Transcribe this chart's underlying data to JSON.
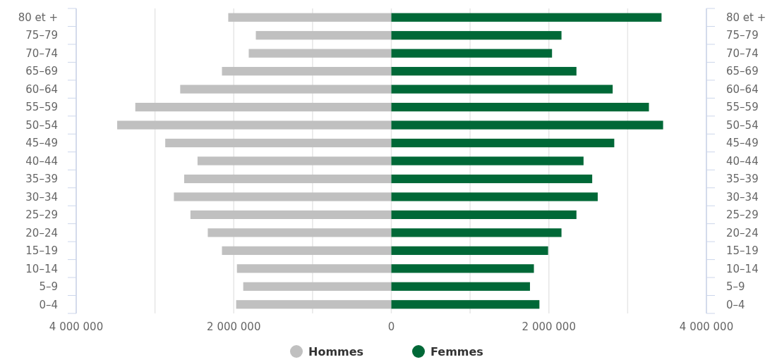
{
  "chart_data": {
    "type": "bar",
    "orientation": "horizontal",
    "stacked": true,
    "categories": [
      "80 et +",
      "75–79",
      "70–74",
      "65–69",
      "60–64",
      "55–59",
      "50–54",
      "45–49",
      "40–44",
      "35–39",
      "30–34",
      "25–29",
      "20–24",
      "15–19",
      "10–14",
      "5–9",
      "0–4"
    ],
    "series": [
      {
        "name": "Hommes",
        "color": "#c0c0c0",
        "values": [
          -2070000,
          -1720000,
          -1810000,
          -2150000,
          -2680000,
          -3250000,
          -3480000,
          -2870000,
          -2460000,
          -2630000,
          -2760000,
          -2550000,
          -2330000,
          -2150000,
          -1960000,
          -1880000,
          -1970000
        ]
      },
      {
        "name": "Femmes",
        "color": "#006837",
        "values": [
          3430000,
          2160000,
          2040000,
          2350000,
          2810000,
          3270000,
          3450000,
          2830000,
          2440000,
          2550000,
          2620000,
          2350000,
          2160000,
          1990000,
          1810000,
          1760000,
          1880000
        ]
      }
    ],
    "xlim": [
      -4000000,
      4000000
    ],
    "xticks": [
      {
        "value": -4000000,
        "label": "4 000 000"
      },
      {
        "value": -3000000,
        "label": null
      },
      {
        "value": -2000000,
        "label": "2 000 000"
      },
      {
        "value": -1000000,
        "label": null
      },
      0,
      {
        "value": 1000000,
        "label": null
      },
      {
        "value": 2000000,
        "label": "2 000 000"
      },
      {
        "value": 3000000,
        "label": null
      },
      {
        "value": 4000000,
        "label": "4 000 000"
      }
    ],
    "grid": "x",
    "legend": "bottom"
  }
}
